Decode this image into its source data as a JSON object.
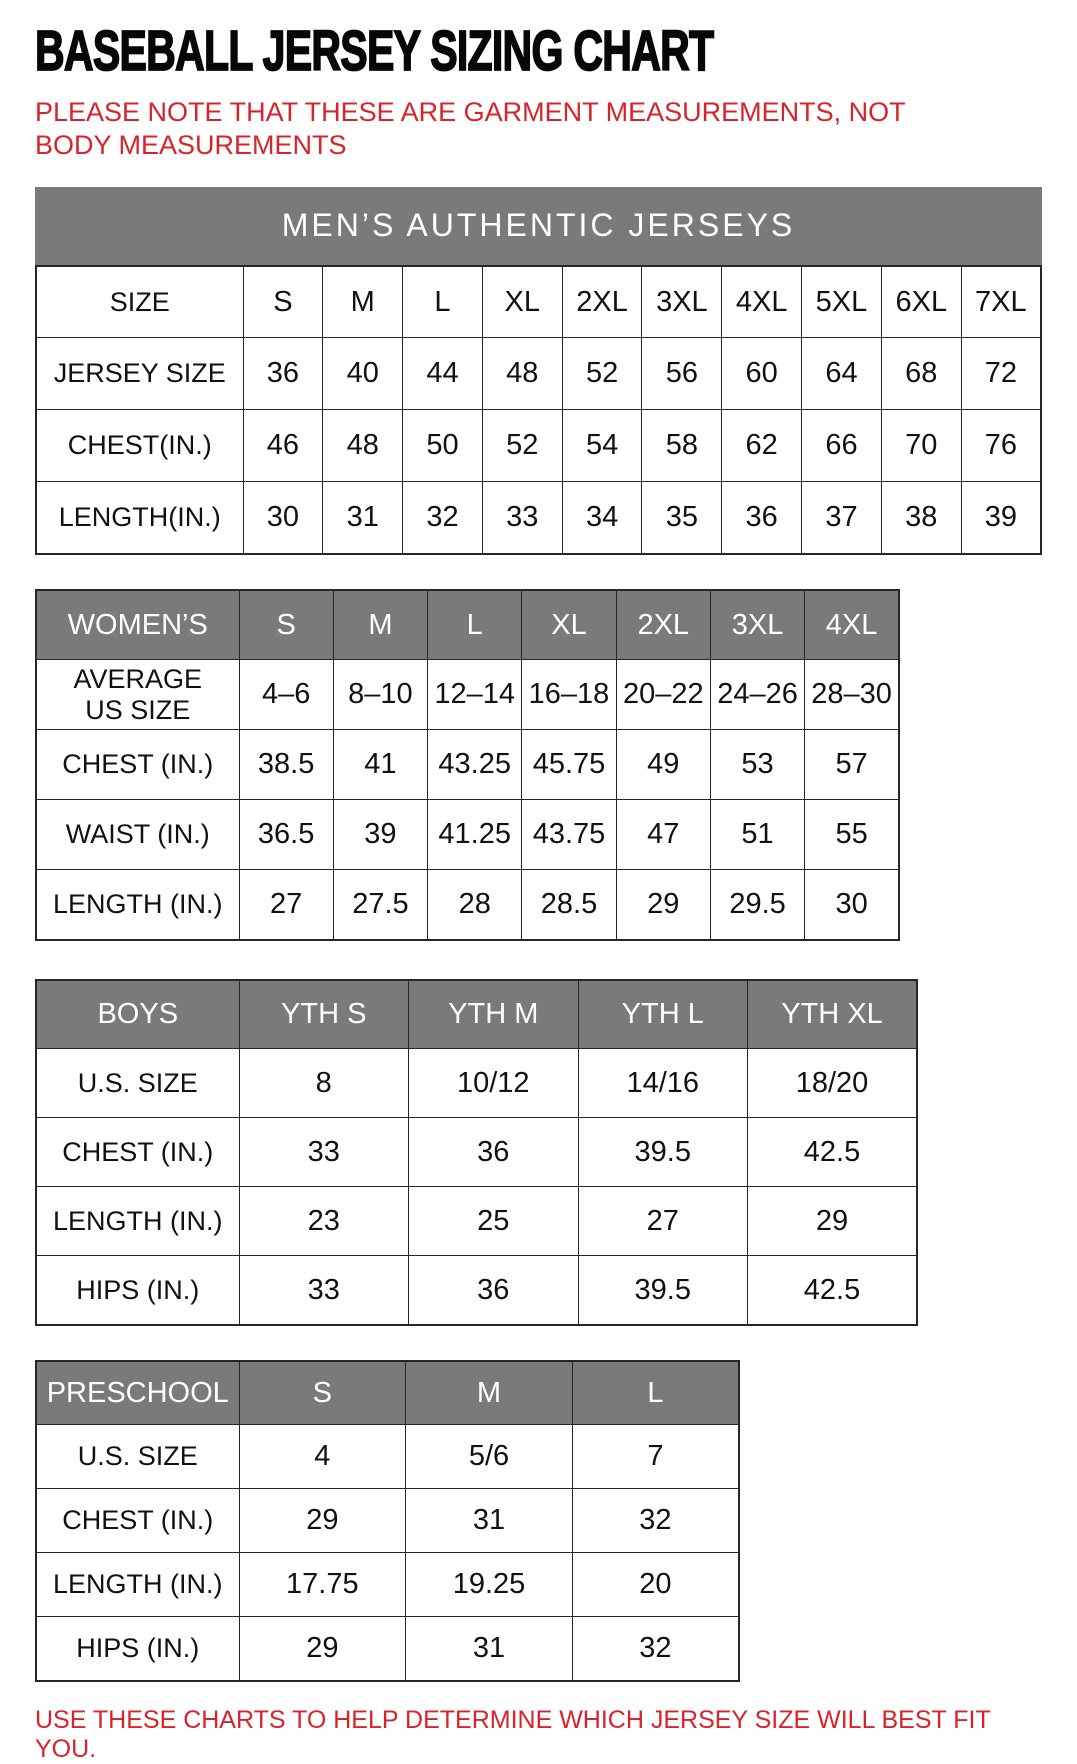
{
  "page": {
    "title": "BASEBALL JERSEY SIZING CHART",
    "subtitle": "PLEASE NOTE THAT THESE ARE GARMENT MEASUREMENTS, NOT BODY MEASUREMENTS",
    "footer": "USE THESE CHARTS TO HELP DETERMINE WHICH JERSEY SIZE WILL BEST FIT YOU.",
    "colors": {
      "accent_red": "#D8232A",
      "header_gray": "#7A7A7A",
      "border_dark": "#262626"
    }
  },
  "tables": [
    {
      "id": "mens",
      "banner": "MEN’S AUTHENTIC JERSEYS",
      "rows": [
        {
          "label": "SIZE",
          "values": [
            "S",
            "M",
            "L",
            "XL",
            "2XL",
            "3XL",
            "4XL",
            "5XL",
            "6XL",
            "7XL"
          ]
        },
        {
          "label": "JERSEY SIZE",
          "values": [
            "36",
            "40",
            "44",
            "48",
            "52",
            "56",
            "60",
            "64",
            "68",
            "72"
          ]
        },
        {
          "label": "CHEST(IN.)",
          "values": [
            "46",
            "48",
            "50",
            "52",
            "54",
            "58",
            "62",
            "66",
            "70",
            "76"
          ]
        },
        {
          "label": "LENGTH(IN.)",
          "values": [
            "30",
            "31",
            "32",
            "33",
            "34",
            "35",
            "36",
            "37",
            "38",
            "39"
          ]
        }
      ]
    },
    {
      "id": "womens",
      "header_row": {
        "label": "WOMEN’S",
        "values": [
          "S",
          "M",
          "L",
          "XL",
          "2XL",
          "3XL",
          "4XL"
        ]
      },
      "rows": [
        {
          "label": "AVERAGE\nUS SIZE",
          "values": [
            "4–6",
            "8–10",
            "12–14",
            "16–18",
            "20–22",
            "24–26",
            "28–30"
          ]
        },
        {
          "label": "CHEST (IN.)",
          "values": [
            "38.5",
            "41",
            "43.25",
            "45.75",
            "49",
            "53",
            "57"
          ]
        },
        {
          "label": "WAIST (IN.)",
          "values": [
            "36.5",
            "39",
            "41.25",
            "43.75",
            "47",
            "51",
            "55"
          ]
        },
        {
          "label": "LENGTH (IN.)",
          "values": [
            "27",
            "27.5",
            "28",
            "28.5",
            "29",
            "29.5",
            "30"
          ]
        }
      ]
    },
    {
      "id": "boys",
      "header_row": {
        "label": "BOYS",
        "values": [
          "YTH S",
          "YTH M",
          "YTH L",
          "YTH XL"
        ]
      },
      "rows": [
        {
          "label": "U.S. SIZE",
          "values": [
            "8",
            "10/12",
            "14/16",
            "18/20"
          ]
        },
        {
          "label": "CHEST (IN.)",
          "values": [
            "33",
            "36",
            "39.5",
            "42.5"
          ]
        },
        {
          "label": "LENGTH (IN.)",
          "values": [
            "23",
            "25",
            "27",
            "29"
          ]
        },
        {
          "label": "HIPS (IN.)",
          "values": [
            "33",
            "36",
            "39.5",
            "42.5"
          ]
        }
      ]
    },
    {
      "id": "preschool",
      "header_row": {
        "label": "PRESCHOOL",
        "values": [
          "S",
          "M",
          "L"
        ]
      },
      "rows": [
        {
          "label": "U.S. SIZE",
          "values": [
            "4",
            "5/6",
            "7"
          ]
        },
        {
          "label": "CHEST (IN.)",
          "values": [
            "29",
            "31",
            "32"
          ]
        },
        {
          "label": "LENGTH (IN.)",
          "values": [
            "17.75",
            "19.25",
            "20"
          ]
        },
        {
          "label": "HIPS (IN.)",
          "values": [
            "29",
            "31",
            "32"
          ]
        }
      ]
    }
  ]
}
